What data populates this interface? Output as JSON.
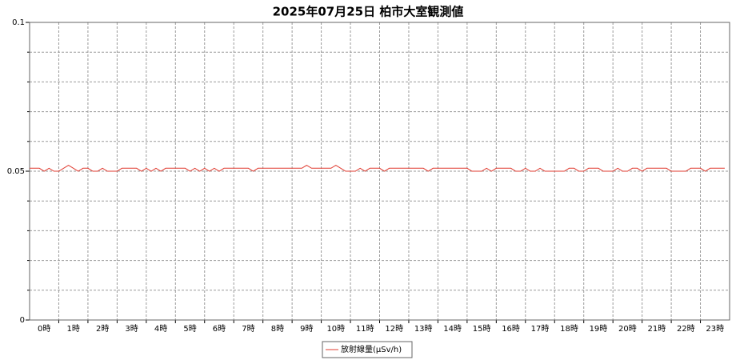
{
  "chart_data": {
    "type": "line",
    "title": "2025年07月25日 柏市大室観測値",
    "categories": [
      "0時",
      "1時",
      "2時",
      "3時",
      "4時",
      "5時",
      "6時",
      "7時",
      "8時",
      "9時",
      "10時",
      "11時",
      "12時",
      "13時",
      "14時",
      "15時",
      "16時",
      "17時",
      "18時",
      "19時",
      "20時",
      "21時",
      "22時",
      "23時"
    ],
    "x": [
      0,
      10,
      20,
      30,
      40,
      50,
      60,
      70,
      80,
      90,
      100,
      110,
      120,
      130,
      140,
      150,
      160,
      170,
      180,
      190,
      200,
      210,
      220,
      230,
      240,
      250,
      260,
      270,
      280,
      290,
      300,
      310,
      320,
      330,
      340,
      350,
      360,
      370,
      380,
      390,
      400,
      410,
      420,
      430,
      440,
      450,
      460,
      470,
      480,
      490,
      500,
      510,
      520,
      530,
      540,
      550,
      560,
      570,
      580,
      590,
      600,
      610,
      620,
      630,
      640,
      650,
      660,
      670,
      680,
      690,
      700,
      710,
      720,
      730,
      740,
      750,
      760,
      770,
      780,
      790,
      800,
      810,
      820,
      830,
      840,
      850,
      860,
      870,
      880,
      890,
      900,
      910,
      920,
      930,
      940,
      950,
      960,
      970,
      980,
      990,
      1000,
      1010,
      1020,
      1030,
      1040,
      1050,
      1060,
      1070,
      1080,
      1090,
      1100,
      1110,
      1120,
      1130,
      1140,
      1150,
      1160,
      1170,
      1180,
      1190,
      1200,
      1210,
      1220,
      1230,
      1240,
      1250,
      1260,
      1270,
      1280,
      1290,
      1300,
      1310,
      1320,
      1330,
      1340,
      1350,
      1360,
      1370,
      1380,
      1390,
      1400,
      1410,
      1420,
      1430
    ],
    "xlim": [
      0,
      1440
    ],
    "series": [
      {
        "name": "放射線量(μSv/h)",
        "color": "#e03c31",
        "values": [
          0.051,
          0.051,
          0.051,
          0.05,
          0.051,
          0.05,
          0.05,
          0.051,
          0.052,
          0.051,
          0.05,
          0.051,
          0.051,
          0.05,
          0.05,
          0.051,
          0.05,
          0.05,
          0.05,
          0.051,
          0.051,
          0.051,
          0.051,
          0.05,
          0.051,
          0.05,
          0.051,
          0.05,
          0.051,
          0.051,
          0.051,
          0.051,
          0.051,
          0.05,
          0.051,
          0.05,
          0.051,
          0.05,
          0.051,
          0.05,
          0.051,
          0.051,
          0.051,
          0.051,
          0.051,
          0.051,
          0.05,
          0.051,
          0.051,
          0.051,
          0.051,
          0.051,
          0.051,
          0.051,
          0.051,
          0.051,
          0.051,
          0.052,
          0.051,
          0.051,
          0.051,
          0.051,
          0.051,
          0.052,
          0.051,
          0.05,
          0.05,
          0.05,
          0.051,
          0.05,
          0.051,
          0.051,
          0.051,
          0.05,
          0.051,
          0.051,
          0.051,
          0.051,
          0.051,
          0.051,
          0.051,
          0.051,
          0.05,
          0.051,
          0.051,
          0.051,
          0.051,
          0.051,
          0.051,
          0.051,
          0.051,
          0.05,
          0.05,
          0.05,
          0.051,
          0.05,
          0.051,
          0.051,
          0.051,
          0.051,
          0.05,
          0.05,
          0.051,
          0.05,
          0.05,
          0.051,
          0.05,
          0.05,
          0.05,
          0.05,
          0.05,
          0.051,
          0.051,
          0.05,
          0.05,
          0.051,
          0.051,
          0.051,
          0.05,
          0.05,
          0.05,
          0.051,
          0.05,
          0.05,
          0.051,
          0.051,
          0.05,
          0.051,
          0.051,
          0.051,
          0.051,
          0.051,
          0.05,
          0.05,
          0.05,
          0.05,
          0.051,
          0.051,
          0.051,
          0.05,
          0.051,
          0.051,
          0.051,
          0.051
        ]
      }
    ],
    "ylim": [
      0,
      0.1
    ],
    "yticks": [
      0,
      0.05,
      0.1
    ],
    "yminorticks": [
      0.01,
      0.02,
      0.03,
      0.04,
      0.06,
      0.07,
      0.08,
      0.09
    ],
    "grid": true,
    "legend": "bottom"
  }
}
